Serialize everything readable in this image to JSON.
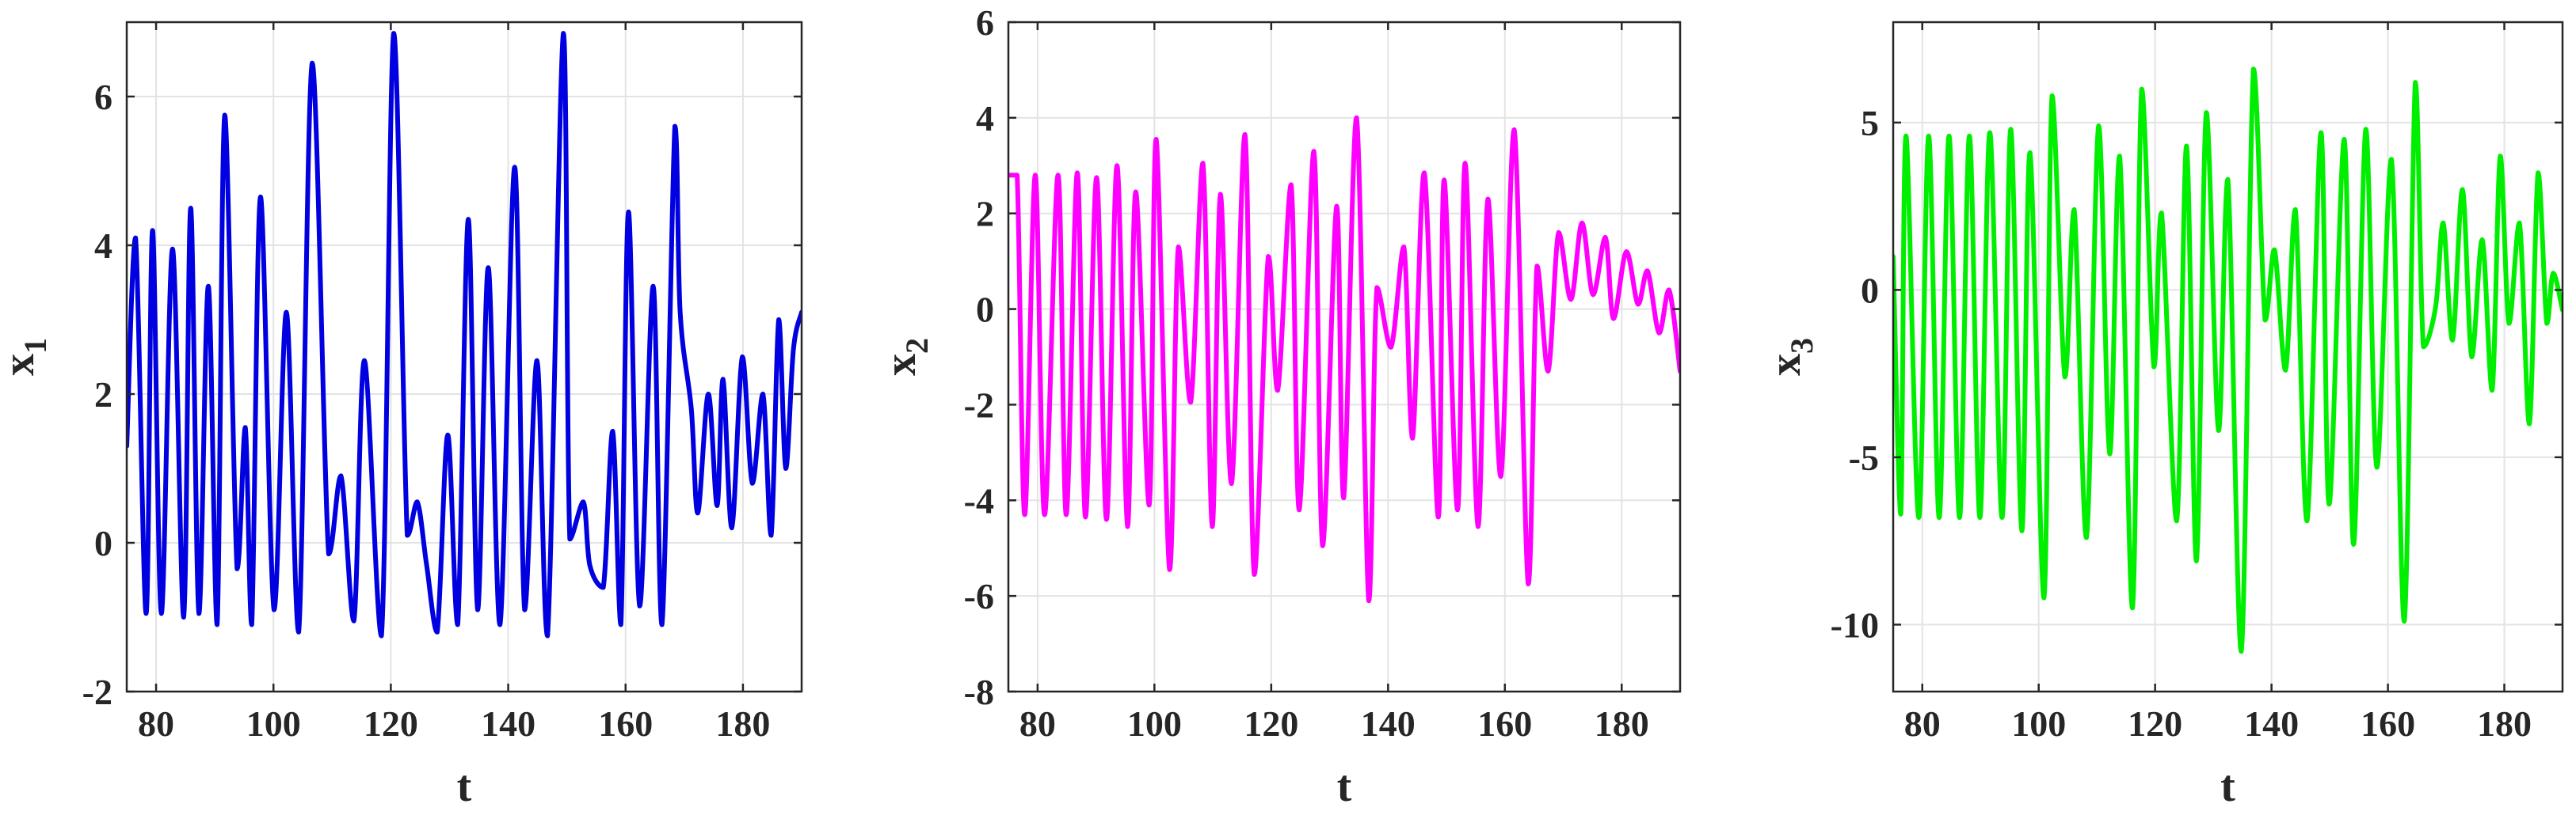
{
  "figure": {
    "panels": [
      {
        "id": "p1",
        "ylabel_main": "x",
        "ylabel_sub": "1",
        "xlabel": "t",
        "color": "#0000E0",
        "xlim": [
          75,
          190
        ],
        "ylim": [
          -2,
          7
        ],
        "xticks": [
          80,
          100,
          120,
          140,
          160,
          180
        ],
        "xtick_labels": [
          "80",
          "100",
          "120",
          "140",
          "160",
          "180"
        ],
        "yticks": [
          -2,
          0,
          2,
          4,
          6
        ],
        "ytick_labels": [
          "-2",
          "0",
          "2",
          "4",
          "6"
        ]
      },
      {
        "id": "p2",
        "ylabel_main": "x",
        "ylabel_sub": "2",
        "xlabel": "t",
        "color": "#FF00FF",
        "xlim": [
          75,
          190
        ],
        "ylim": [
          -8,
          6
        ],
        "xticks": [
          80,
          100,
          120,
          140,
          160,
          180
        ],
        "xtick_labels": [
          "80",
          "100",
          "120",
          "140",
          "160",
          "180"
        ],
        "yticks": [
          -8,
          -6,
          -4,
          -2,
          0,
          2,
          4,
          6
        ],
        "ytick_labels": [
          "-8",
          "-6",
          "-4",
          "-2",
          "0",
          "2",
          "4",
          "6"
        ]
      },
      {
        "id": "p3",
        "ylabel_main": "x",
        "ylabel_sub": "3",
        "xlabel": "t",
        "color": "#00EE00",
        "xlim": [
          75,
          190
        ],
        "ylim": [
          -12,
          8
        ],
        "xticks": [
          80,
          100,
          120,
          140,
          160,
          180
        ],
        "xtick_labels": [
          "80",
          "100",
          "120",
          "140",
          "160",
          "180"
        ],
        "yticks": [
          -10,
          -5,
          0,
          5
        ],
        "ytick_labels": [
          "-10",
          "-5",
          "0",
          "5"
        ]
      }
    ]
  },
  "chart_data": [
    {
      "type": "line",
      "xlabel": "t",
      "ylabel": "x1",
      "xlim": [
        75,
        190
      ],
      "ylim": [
        -2,
        7
      ],
      "grid": true,
      "series": [
        {
          "name": "",
          "x": [
            75,
            76.5,
            78.3,
            79.4,
            80.9,
            82.8,
            84.7,
            85.9,
            87.3,
            88.9,
            90.4,
            91.7,
            93.8,
            95.2,
            96.3,
            97.8,
            100.1,
            102.2,
            104.3,
            106.6,
            109.4,
            111.5,
            113.7,
            115.5,
            118.4,
            120.5,
            122.8,
            124.5,
            126.1,
            127.9,
            129.7,
            131.4,
            133.2,
            134.8,
            136.6,
            138.6,
            141.1,
            142.8,
            144.9,
            146.7,
            149.4,
            150.5,
            152.8,
            153.9,
            156.2,
            157.8,
            159.2,
            160.5,
            162.4,
            164.7,
            166.2,
            168.4,
            169.3,
            171.2,
            172.3,
            174.1,
            175.6,
            176.6,
            178.1,
            179.9,
            181.6,
            183.4,
            184.8,
            186.1,
            187.3,
            188.6,
            190
          ],
          "y": [
            1.3,
            4.1,
            -0.95,
            4.2,
            -0.95,
            3.95,
            -1.0,
            4.5,
            -0.95,
            3.45,
            -1.1,
            5.75,
            -0.35,
            1.55,
            -1.1,
            4.65,
            -0.9,
            3.1,
            -1.2,
            6.45,
            -0.15,
            0.9,
            -1.05,
            2.45,
            -1.25,
            6.85,
            0.1,
            0.55,
            -0.3,
            -1.2,
            1.45,
            -1.1,
            4.35,
            -0.9,
            3.7,
            -1.1,
            5.05,
            -0.9,
            2.45,
            -1.25,
            6.85,
            0.05,
            0.55,
            -0.3,
            -0.6,
            1.5,
            -1.1,
            4.45,
            -0.85,
            3.45,
            -1.1,
            5.6,
            3.1,
            1.8,
            0.4,
            2.0,
            0.5,
            2.2,
            0.2,
            2.5,
            0.8,
            2.0,
            0.1,
            3.0,
            1.0,
            2.6,
            3.1
          ]
        }
      ]
    },
    {
      "type": "line",
      "xlabel": "t",
      "ylabel": "x2",
      "xlim": [
        75,
        190
      ],
      "ylim": [
        -8,
        6
      ],
      "grid": true,
      "series": [
        {
          "name": "",
          "x": [
            75,
            76.5,
            77.8,
            79.6,
            81.2,
            83.5,
            84.9,
            86.8,
            88.2,
            90.1,
            91.8,
            93.6,
            95.4,
            96.8,
            99.1,
            100.3,
            102.6,
            104.1,
            106.2,
            108.3,
            109.9,
            111.3,
            113.2,
            115.5,
            117.1,
            119.5,
            121.1,
            123.4,
            124.8,
            127.3,
            128.8,
            131.2,
            132.4,
            134.6,
            136.7,
            138.1,
            140.5,
            142.7,
            144.2,
            146.2,
            148.6,
            149.6,
            151.9,
            153.2,
            155.4,
            157.1,
            159.3,
            161.6,
            164.0,
            165.5,
            167.4,
            169.2,
            171.3,
            173.2,
            175.1,
            177.2,
            178.6,
            180.8,
            182.8,
            184.4,
            186.4,
            188.1,
            190
          ],
          "y": [
            2.8,
            2.8,
            -4.3,
            2.8,
            -4.3,
            2.8,
            -4.3,
            2.85,
            -4.35,
            2.75,
            -4.4,
            3.0,
            -4.55,
            2.45,
            -4.1,
            3.55,
            -5.45,
            1.3,
            -1.95,
            3.05,
            -4.55,
            2.4,
            -3.65,
            3.65,
            -5.55,
            1.1,
            -1.7,
            2.6,
            -4.2,
            3.3,
            -4.95,
            2.15,
            -3.95,
            4.0,
            -6.1,
            0.45,
            -0.8,
            1.3,
            -2.7,
            2.85,
            -4.35,
            2.7,
            -4.2,
            3.05,
            -4.55,
            2.3,
            -3.5,
            3.75,
            -5.75,
            0.9,
            -1.3,
            1.6,
            0.2,
            1.8,
            0.3,
            1.5,
            -0.2,
            1.2,
            0.1,
            0.8,
            -0.5,
            0.4,
            -1.3
          ]
        }
      ]
    },
    {
      "type": "line",
      "xlabel": "t",
      "ylabel": "x3",
      "xlim": [
        75,
        190
      ],
      "ylim": [
        -12,
        8
      ],
      "grid": true,
      "series": [
        {
          "name": "",
          "x": [
            75,
            76.3,
            77.2,
            79.4,
            81.1,
            82.9,
            84.6,
            86.4,
            88.1,
            89.9,
            91.6,
            93.7,
            95.2,
            97.1,
            98.5,
            100.9,
            102.3,
            104.5,
            106.1,
            108.2,
            110.3,
            112.2,
            113.9,
            116.1,
            117.7,
            119.8,
            121.1,
            123.7,
            125.4,
            127.1,
            128.8,
            130.9,
            132.5,
            134.8,
            136.9,
            138.9,
            140.5,
            142.4,
            144.1,
            146.1,
            148.5,
            149.9,
            152.5,
            154.1,
            156.2,
            158.1,
            160.6,
            162.8,
            164.7,
            166.1,
            168.2,
            169.5,
            171.1,
            172.8,
            174.4,
            176.2,
            177.9,
            179.3,
            180.8,
            182.6,
            184.3,
            185.8,
            187.3,
            188.4,
            190
          ],
          "y": [
            1.0,
            -6.7,
            4.6,
            -6.8,
            4.6,
            -6.8,
            4.6,
            -6.8,
            4.6,
            -6.8,
            4.7,
            -6.8,
            4.8,
            -7.2,
            4.1,
            -9.2,
            5.8,
            -2.6,
            2.4,
            -7.4,
            4.9,
            -4.9,
            4.0,
            -9.5,
            6.0,
            -2.3,
            2.3,
            -6.9,
            4.3,
            -8.1,
            5.3,
            -4.2,
            3.3,
            -10.8,
            6.6,
            -0.9,
            1.2,
            -2.4,
            2.4,
            -6.9,
            4.7,
            -6.4,
            4.5,
            -7.6,
            4.8,
            -5.3,
            3.9,
            -9.9,
            6.2,
            -1.7,
            -0.5,
            2.0,
            -1.5,
            3.0,
            -2.0,
            1.5,
            -3.0,
            4.0,
            -1.0,
            2.0,
            -4.0,
            3.5,
            -1.0,
            0.5,
            -0.6
          ]
        }
      ]
    }
  ]
}
